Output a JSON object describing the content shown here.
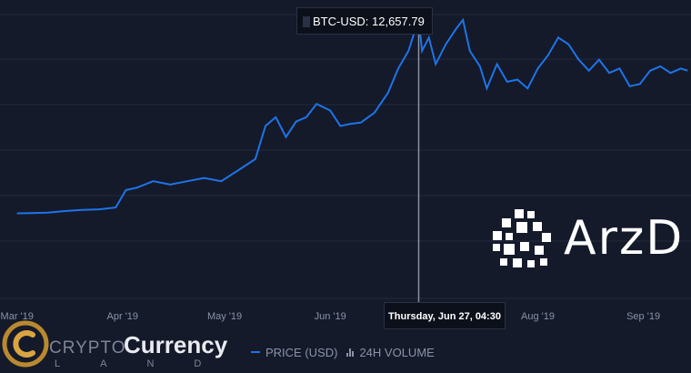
{
  "chart_data": {
    "type": "line",
    "series": [
      {
        "name": "PRICE (USD)",
        "points": [
          [
            "2019-03-01",
            3850
          ],
          [
            "2019-03-05",
            3860
          ],
          [
            "2019-03-10",
            3880
          ],
          [
            "2019-03-15",
            3950
          ],
          [
            "2019-03-20",
            4000
          ],
          [
            "2019-03-25",
            4030
          ],
          [
            "2019-03-30",
            4110
          ],
          [
            "2019-04-02",
            4900
          ],
          [
            "2019-04-05",
            5000
          ],
          [
            "2019-04-10",
            5300
          ],
          [
            "2019-04-15",
            5150
          ],
          [
            "2019-04-20",
            5300
          ],
          [
            "2019-04-25",
            5450
          ],
          [
            "2019-04-30",
            5300
          ],
          [
            "2019-05-05",
            5800
          ],
          [
            "2019-05-10",
            6300
          ],
          [
            "2019-05-13",
            7800
          ],
          [
            "2019-05-16",
            8200
          ],
          [
            "2019-05-19",
            7300
          ],
          [
            "2019-05-22",
            8000
          ],
          [
            "2019-05-25",
            8200
          ],
          [
            "2019-05-28",
            8800
          ],
          [
            "2019-06-01",
            8500
          ],
          [
            "2019-06-04",
            7800
          ],
          [
            "2019-06-07",
            7900
          ],
          [
            "2019-06-10",
            7950
          ],
          [
            "2019-06-14",
            8400
          ],
          [
            "2019-06-18",
            9300
          ],
          [
            "2019-06-21",
            10400
          ],
          [
            "2019-06-24",
            11200
          ],
          [
            "2019-06-27",
            12657.79
          ],
          [
            "2019-06-28",
            11200
          ],
          [
            "2019-06-30",
            11800
          ],
          [
            "2019-07-02",
            10600
          ],
          [
            "2019-07-05",
            11500
          ],
          [
            "2019-07-08",
            12200
          ],
          [
            "2019-07-10",
            12600
          ],
          [
            "2019-07-12",
            11200
          ],
          [
            "2019-07-15",
            10500
          ],
          [
            "2019-07-17",
            9500
          ],
          [
            "2019-07-20",
            10600
          ],
          [
            "2019-07-23",
            9800
          ],
          [
            "2019-07-26",
            9900
          ],
          [
            "2019-07-29",
            9500
          ],
          [
            "2019-08-01",
            10400
          ],
          [
            "2019-08-04",
            11000
          ],
          [
            "2019-08-07",
            11800
          ],
          [
            "2019-08-10",
            11500
          ],
          [
            "2019-08-13",
            10800
          ],
          [
            "2019-08-16",
            10300
          ],
          [
            "2019-08-19",
            10800
          ],
          [
            "2019-08-22",
            10200
          ],
          [
            "2019-08-25",
            10400
          ],
          [
            "2019-08-28",
            9600
          ],
          [
            "2019-08-31",
            9700
          ],
          [
            "2019-09-03",
            10300
          ],
          [
            "2019-09-06",
            10500
          ],
          [
            "2019-09-09",
            10200
          ],
          [
            "2019-09-12",
            10400
          ],
          [
            "2019-09-14",
            10300
          ]
        ]
      }
    ],
    "x_ticks": [
      {
        "label": "Mar '19",
        "date": "2019-03-01"
      },
      {
        "label": "Apr '19",
        "date": "2019-04-01"
      },
      {
        "label": "May '19",
        "date": "2019-05-01"
      },
      {
        "label": "Jun '19",
        "date": "2019-06-01"
      },
      {
        "label": "Aug '19",
        "date": "2019-08-01"
      },
      {
        "label": "Sep '19",
        "date": "2019-09-01"
      }
    ],
    "xlim": [
      "2019-02-24",
      "2019-09-15"
    ],
    "ylim": [
      0,
      13500
    ],
    "grid": true,
    "title": "",
    "xlabel": "",
    "ylabel": "",
    "hover": {
      "date": "2019-06-27",
      "value": 12657.79
    }
  },
  "tooltip": {
    "text": "BTC-USD: 12,657.79",
    "date_text": "Thursday, Jun 27, 04:30"
  },
  "legend": {
    "items": [
      {
        "label": "PRICE (USD)"
      },
      {
        "label": "24H VOLUME"
      }
    ]
  },
  "watermarks": {
    "crypto_part1": "CRYPTO",
    "crypto_part2": "Currency",
    "crypto_part3": "LAND",
    "arz_text": "ArzD"
  },
  "colors": {
    "background": "#141a2a",
    "line": "#1e74e8",
    "grid": "#222a3c",
    "crosshair": "#8b92a3"
  }
}
